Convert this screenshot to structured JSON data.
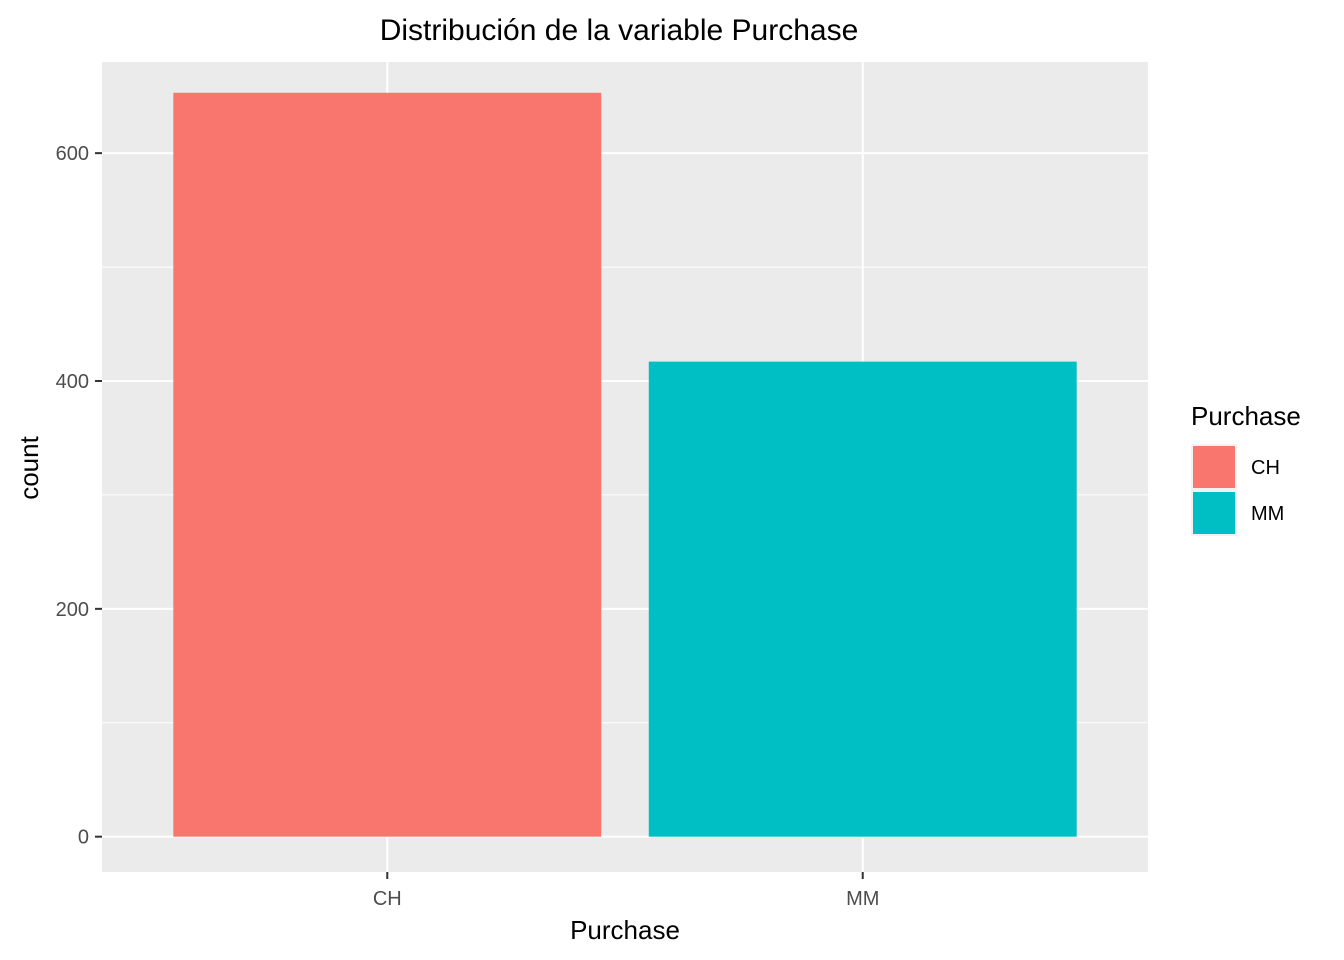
{
  "chart_data": {
    "type": "bar",
    "title": "Distribución de la variable Purchase",
    "xlabel": "Purchase",
    "ylabel": "count",
    "categories": [
      "CH",
      "MM"
    ],
    "values": [
      653,
      417
    ],
    "colors": [
      "#F8766D",
      "#00BFC4"
    ],
    "ylim": [
      -31,
      680
    ],
    "yticks": [
      0,
      200,
      400,
      600
    ],
    "ytick_labels": [
      "0",
      "200",
      "400",
      "600"
    ],
    "grid": true,
    "panel_background": "#EBEBEB",
    "grid_color": "#FFFFFF",
    "legend": {
      "title": "Purchase",
      "placement": "right",
      "entries": [
        "CH",
        "MM"
      ]
    }
  }
}
